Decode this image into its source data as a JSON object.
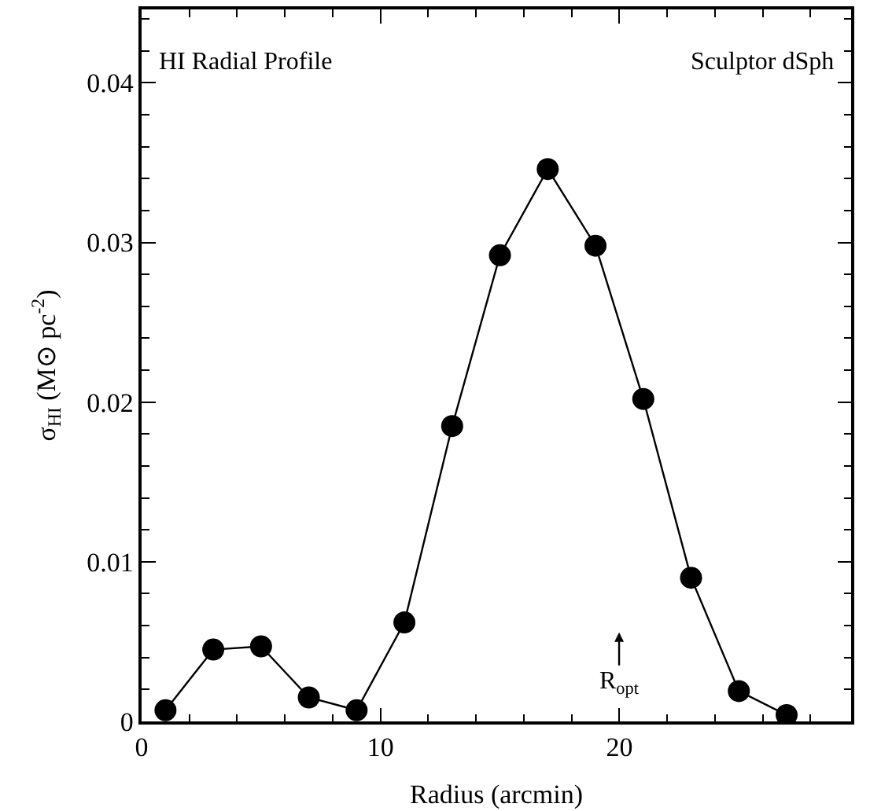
{
  "chart_data": {
    "type": "line",
    "xlabel": "Radius (arcmin)",
    "ylabel": "σ$_{HI}$ (M⊙ pc$^{-2}$)",
    "x": [
      1,
      3,
      5,
      7,
      9,
      11,
      13,
      15,
      17,
      19,
      21,
      23,
      25,
      27
    ],
    "series": [
      {
        "color": "#000000",
        "values": [
          0.0007,
          0.0045,
          0.0047,
          0.0015,
          0.0007,
          0.0062,
          0.0185,
          0.0292,
          0.0346,
          0.0298,
          0.0202,
          0.009,
          0.0019,
          0.0004
        ]
      }
    ],
    "marker": "circle",
    "line_style": "solid",
    "xlim": [
      0,
      29.7
    ],
    "xticks": [
      0,
      10,
      20
    ],
    "ylim": [
      0,
      0.0446
    ],
    "yticks": [
      0,
      0.01,
      0.02,
      0.03,
      0.04
    ],
    "annotations": [
      "HI Radial Profile",
      "Sculptor dSph",
      "R$_{opt}$"
    ]
  }
}
